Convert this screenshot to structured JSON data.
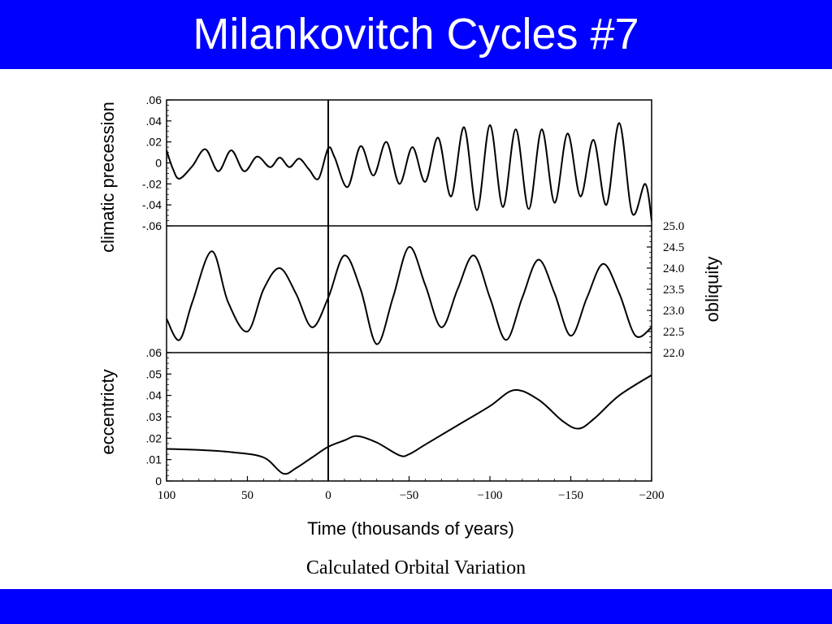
{
  "slide": {
    "title": "Milankovitch Cycles #7",
    "caption": "Calculated Orbital Variation",
    "accent_color": "#0000ff"
  },
  "chart_data": [
    {
      "type": "line",
      "panel": "top",
      "ylabel": "climatic precession",
      "ylim": [
        -0.06,
        0.06
      ],
      "yticks": [
        ".06",
        ".04",
        ".02",
        "0",
        "-.02",
        "-.04",
        "-.06"
      ],
      "xlim": [
        100,
        -200
      ],
      "x": [
        100,
        96,
        92,
        84,
        76,
        68,
        60,
        52,
        44,
        36,
        30,
        24,
        18,
        12,
        6,
        0,
        -4,
        -12,
        -20,
        -28,
        -36,
        -44,
        -52,
        -60,
        -68,
        -76,
        -84,
        -92,
        -100,
        -108,
        -116,
        -124,
        -132,
        -140,
        -148,
        -156,
        -164,
        -172,
        -180,
        -188,
        -196,
        -200
      ],
      "y": [
        0.012,
        -0.006,
        -0.015,
        -0.003,
        0.013,
        -0.008,
        0.012,
        -0.008,
        0.006,
        -0.004,
        0.005,
        -0.004,
        0.004,
        -0.006,
        -0.015,
        0.014,
        0.005,
        -0.023,
        0.016,
        -0.012,
        0.02,
        -0.02,
        0.015,
        -0.018,
        0.024,
        -0.032,
        0.034,
        -0.045,
        0.036,
        -0.042,
        0.032,
        -0.044,
        0.032,
        -0.038,
        0.028,
        -0.032,
        0.022,
        -0.04,
        0.038,
        -0.048,
        -0.02,
        -0.055
      ]
    },
    {
      "type": "line",
      "panel": "middle",
      "ylabel": "obliquity",
      "ylim": [
        22.0,
        25.0
      ],
      "yticks": [
        "25.0",
        "24.5",
        "24.0",
        "23.5",
        "23.0",
        "22.5",
        "22.0"
      ],
      "xlim": [
        100,
        -200
      ],
      "x": [
        100,
        92,
        84,
        72,
        62,
        50,
        40,
        30,
        20,
        10,
        0,
        -10,
        -20,
        -30,
        -40,
        -50,
        -60,
        -70,
        -80,
        -90,
        -100,
        -110,
        -120,
        -130,
        -140,
        -150,
        -160,
        -170,
        -180,
        -190,
        -200
      ],
      "y": [
        22.8,
        22.3,
        23.2,
        24.4,
        23.2,
        22.5,
        23.5,
        24.0,
        23.4,
        22.6,
        23.3,
        24.3,
        23.5,
        22.2,
        23.3,
        24.5,
        23.6,
        22.6,
        23.5,
        24.3,
        23.3,
        22.3,
        23.3,
        24.2,
        23.4,
        22.4,
        23.3,
        24.1,
        23.4,
        22.4,
        22.6
      ]
    },
    {
      "type": "line",
      "panel": "bottom",
      "ylabel": "eccentricty",
      "ylim": [
        0,
        0.06
      ],
      "yticks": [
        ".06",
        ".05",
        ".04",
        ".03",
        ".02",
        ".01",
        "0"
      ],
      "xlim": [
        100,
        -200
      ],
      "xlabel": "Time (thousands of years)",
      "xticks": [
        "100",
        "50",
        "0",
        "−50",
        "−100",
        "−150",
        "−200"
      ],
      "x": [
        100,
        80,
        60,
        40,
        28,
        20,
        10,
        0,
        -10,
        -18,
        -30,
        -44,
        -50,
        -60,
        -80,
        -100,
        -115,
        -130,
        -145,
        -155,
        -165,
        -180,
        -200
      ],
      "y": [
        0.015,
        0.0145,
        0.0135,
        0.011,
        0.0035,
        0.006,
        0.011,
        0.016,
        0.019,
        0.021,
        0.018,
        0.012,
        0.0125,
        0.017,
        0.026,
        0.035,
        0.0425,
        0.038,
        0.028,
        0.0245,
        0.0295,
        0.04,
        0.0495
      ]
    }
  ]
}
